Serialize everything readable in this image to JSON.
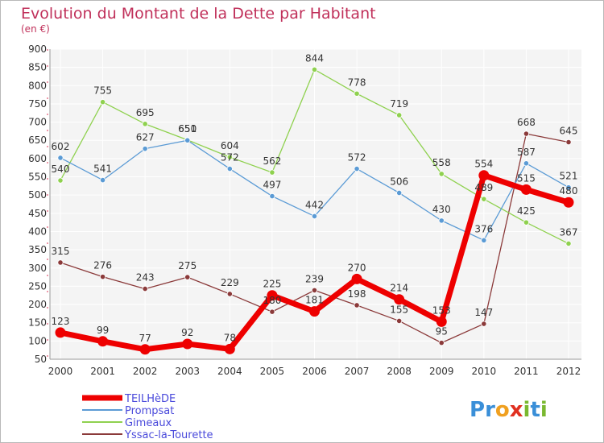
{
  "chart_data": {
    "type": "line",
    "title": "Evolution du Montant de la Dette par Habitant",
    "subtitle": "(en €)",
    "xlabel": "",
    "ylabel": "",
    "x": [
      "2000",
      "2001",
      "2002",
      "2003",
      "2004",
      "2005",
      "2006",
      "2007",
      "2008",
      "2009",
      "2010",
      "2011",
      "2012"
    ],
    "ylim": [
      50,
      900
    ],
    "yticks": [
      50,
      100,
      150,
      200,
      250,
      300,
      350,
      400,
      450,
      500,
      550,
      600,
      650,
      700,
      750,
      800,
      850,
      900
    ],
    "grid": true,
    "legend_position": "bottom-left",
    "series": [
      {
        "name": "TEILHèDE",
        "color": "#ee0000",
        "values": [
          123,
          99,
          77,
          92,
          78,
          225,
          181,
          270,
          214,
          153,
          554,
          515,
          480
        ]
      },
      {
        "name": "Prompsat",
        "color": "#5b9bd5",
        "values": [
          602,
          541,
          627,
          650,
          572,
          497,
          442,
          572,
          506,
          430,
          376,
          587,
          521
        ]
      },
      {
        "name": "Gimeaux",
        "color": "#8fd14f",
        "values": [
          540,
          755,
          695,
          651,
          604,
          562,
          844,
          778,
          719,
          558,
          489,
          425,
          367
        ]
      },
      {
        "name": "Yssac-la-Tourette",
        "color": "#8b3a3a",
        "values": [
          315,
          276,
          243,
          275,
          229,
          180,
          239,
          198,
          155,
          95,
          147,
          668,
          645
        ]
      }
    ]
  },
  "logo": {
    "text": "Proxiti",
    "letters": [
      "P",
      "r",
      "o",
      "x",
      "i",
      "t",
      "i"
    ],
    "colors": [
      "#3a8fd8",
      "#3a8fd8",
      "#f0a020",
      "#e03020",
      "#7ab830",
      "#3a8fd8",
      "#7ab830"
    ]
  }
}
